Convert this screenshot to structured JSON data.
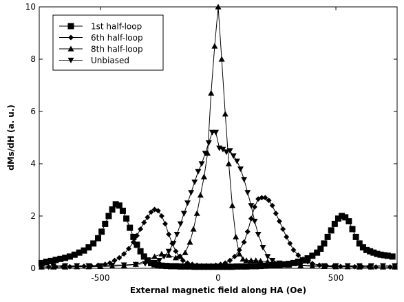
{
  "chart_data": {
    "type": "line",
    "title": "",
    "xlabel": "External magnetic field along HA (Oe)",
    "ylabel": "dMs/dH (a. u.)",
    "xlim": [
      -760,
      760
    ],
    "ylim": [
      0,
      10
    ],
    "xticks": [
      -500,
      0,
      500
    ],
    "xtick_labels": [
      "-500",
      "0",
      "500"
    ],
    "yticks": [
      0,
      2,
      4,
      6,
      8,
      10
    ],
    "ytick_labels": [
      "0",
      "2",
      "4",
      "6",
      "8",
      "10"
    ],
    "grid": false,
    "legend_position": "top-left",
    "series": [
      {
        "name": "1st half-loop",
        "marker": "square",
        "color": "#000000",
        "x": [
          -750,
          -730,
          -710,
          -690,
          -670,
          -650,
          -630,
          -610,
          -590,
          -570,
          -550,
          -530,
          -510,
          -495,
          -480,
          -465,
          -450,
          -435,
          -420,
          -405,
          -390,
          -375,
          -360,
          -345,
          -330,
          -315,
          -300,
          -285,
          -270,
          -255,
          -240,
          -220,
          -200,
          -180,
          -160,
          -140,
          -120,
          -100,
          -80,
          -60,
          -40,
          -20,
          0,
          20,
          40,
          60,
          80,
          100,
          120,
          140,
          160,
          180,
          200,
          220,
          240,
          260,
          280,
          300,
          320,
          340,
          360,
          380,
          400,
          420,
          435,
          450,
          465,
          480,
          495,
          510,
          525,
          540,
          555,
          570,
          585,
          600,
          615,
          630,
          645,
          660,
          675,
          690,
          705,
          720,
          740
        ],
        "y": [
          0.2,
          0.25,
          0.28,
          0.32,
          0.36,
          0.4,
          0.45,
          0.52,
          0.6,
          0.68,
          0.8,
          0.95,
          1.15,
          1.4,
          1.7,
          2.0,
          2.25,
          2.45,
          2.4,
          2.2,
          1.9,
          1.55,
          1.2,
          0.9,
          0.65,
          0.45,
          0.3,
          0.2,
          0.15,
          0.12,
          0.1,
          0.09,
          0.08,
          0.08,
          0.07,
          0.07,
          0.07,
          0.06,
          0.06,
          0.06,
          0.06,
          0.06,
          0.06,
          0.06,
          0.06,
          0.06,
          0.07,
          0.07,
          0.07,
          0.08,
          0.08,
          0.09,
          0.1,
          0.11,
          0.12,
          0.13,
          0.15,
          0.17,
          0.2,
          0.25,
          0.3,
          0.38,
          0.48,
          0.6,
          0.75,
          0.95,
          1.2,
          1.45,
          1.7,
          1.9,
          2.0,
          1.95,
          1.8,
          1.5,
          1.2,
          0.95,
          0.8,
          0.7,
          0.65,
          0.6,
          0.55,
          0.52,
          0.5,
          0.48,
          0.45
        ]
      },
      {
        "name": "6th half-loop",
        "marker": "diamond",
        "color": "#000000",
        "x": [
          -750,
          -720,
          -690,
          -660,
          -630,
          -600,
          -570,
          -540,
          -510,
          -480,
          -460,
          -440,
          -420,
          -400,
          -380,
          -360,
          -345,
          -330,
          -315,
          -300,
          -285,
          -270,
          -255,
          -240,
          -225,
          -210,
          -195,
          -180,
          -165,
          -150,
          -130,
          -110,
          -90,
          -70,
          -50,
          -30,
          -10,
          10,
          30,
          50,
          70,
          90,
          110,
          125,
          140,
          155,
          170,
          185,
          200,
          215,
          230,
          245,
          260,
          275,
          290,
          305,
          320,
          340,
          360,
          380,
          400,
          430,
          460,
          490,
          520,
          550,
          580,
          610,
          640,
          670,
          700,
          730,
          750
        ],
        "y": [
          0.05,
          0.05,
          0.05,
          0.06,
          0.06,
          0.07,
          0.08,
          0.1,
          0.12,
          0.15,
          0.2,
          0.3,
          0.4,
          0.55,
          0.75,
          1.0,
          1.25,
          1.5,
          1.75,
          1.95,
          2.15,
          2.25,
          2.2,
          2.0,
          1.7,
          1.3,
          0.95,
          0.65,
          0.45,
          0.3,
          0.2,
          0.15,
          0.12,
          0.1,
          0.1,
          0.1,
          0.12,
          0.15,
          0.2,
          0.3,
          0.45,
          0.7,
          1.0,
          1.4,
          1.9,
          2.35,
          2.65,
          2.7,
          2.7,
          2.6,
          2.4,
          2.1,
          1.8,
          1.5,
          1.2,
          0.95,
          0.7,
          0.5,
          0.35,
          0.25,
          0.18,
          0.12,
          0.1,
          0.08,
          0.07,
          0.07,
          0.06,
          0.06,
          0.06,
          0.05,
          0.05,
          0.05,
          0.05
        ]
      },
      {
        "name": "8th half-loop",
        "marker": "triangle-up",
        "color": "#000000",
        "x": [
          -750,
          -700,
          -650,
          -600,
          -550,
          -500,
          -450,
          -400,
          -350,
          -300,
          -270,
          -240,
          -210,
          -180,
          -160,
          -140,
          -120,
          -105,
          -90,
          -75,
          -60,
          -45,
          -30,
          -15,
          0,
          15,
          30,
          45,
          60,
          75,
          90,
          105,
          120,
          140,
          160,
          180,
          210,
          240,
          270,
          300,
          350,
          400,
          450,
          500,
          550,
          600,
          650,
          700,
          750
        ],
        "y": [
          0.05,
          0.05,
          0.05,
          0.06,
          0.06,
          0.07,
          0.08,
          0.1,
          0.15,
          0.3,
          0.45,
          0.55,
          0.5,
          0.4,
          0.45,
          0.6,
          1.0,
          1.5,
          2.1,
          2.8,
          3.5,
          4.4,
          6.7,
          8.5,
          10.0,
          8.0,
          5.9,
          4.0,
          2.4,
          1.2,
          0.55,
          0.35,
          0.3,
          0.3,
          0.3,
          0.28,
          0.25,
          0.2,
          0.15,
          0.12,
          0.1,
          0.08,
          0.07,
          0.06,
          0.06,
          0.05,
          0.05,
          0.05,
          0.05
        ]
      },
      {
        "name": "Unbiased",
        "marker": "triangle-down",
        "color": "#000000",
        "x": [
          -750,
          -700,
          -650,
          -600,
          -550,
          -500,
          -450,
          -400,
          -350,
          -310,
          -270,
          -250,
          -230,
          -210,
          -190,
          -175,
          -160,
          -145,
          -130,
          -115,
          -100,
          -85,
          -70,
          -55,
          -40,
          -25,
          -10,
          5,
          20,
          35,
          50,
          65,
          80,
          95,
          110,
          125,
          140,
          155,
          170,
          190,
          210,
          230,
          260,
          300,
          350,
          400,
          450,
          500,
          550,
          600,
          650,
          700,
          750
        ],
        "y": [
          0.1,
          0.1,
          0.1,
          0.1,
          0.1,
          0.1,
          0.12,
          0.13,
          0.15,
          0.18,
          0.22,
          0.3,
          0.45,
          0.65,
          0.95,
          1.3,
          1.7,
          2.1,
          2.5,
          2.9,
          3.3,
          3.7,
          4.0,
          4.4,
          4.8,
          5.2,
          5.2,
          4.6,
          4.55,
          4.45,
          4.5,
          4.3,
          4.1,
          3.8,
          3.4,
          2.9,
          2.4,
          1.8,
          1.3,
          0.8,
          0.45,
          0.3,
          0.2,
          0.15,
          0.12,
          0.1,
          0.1,
          0.1,
          0.1,
          0.1,
          0.1,
          0.1,
          0.1
        ]
      }
    ]
  }
}
